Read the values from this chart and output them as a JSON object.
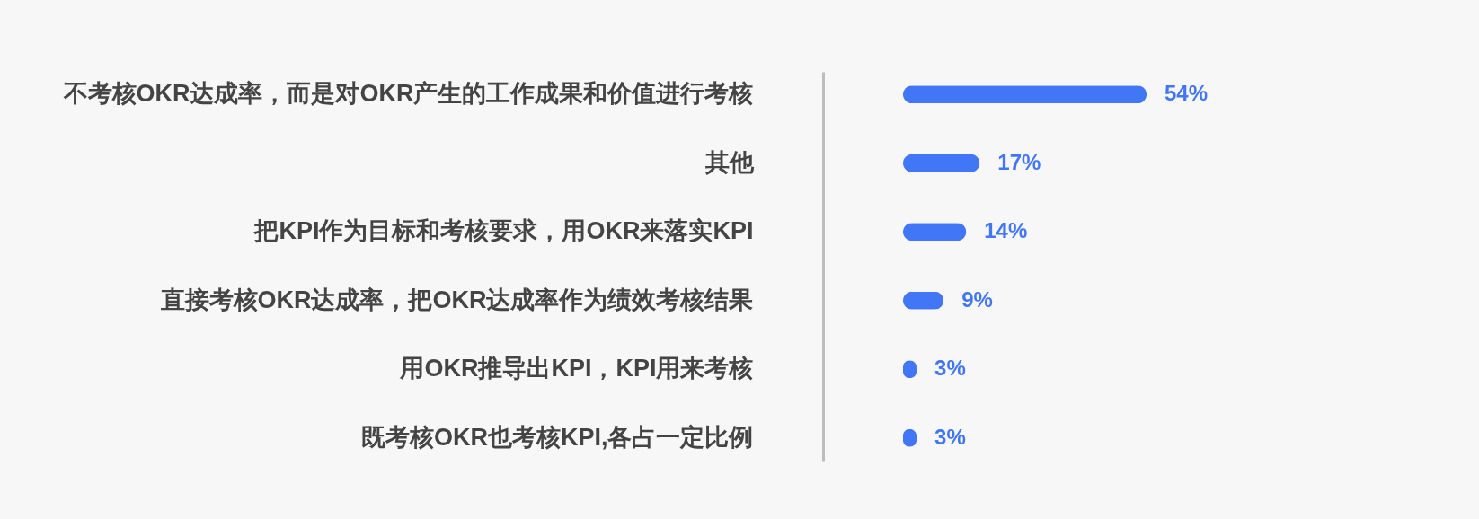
{
  "chart_data": {
    "type": "bar",
    "orientation": "horizontal",
    "categories": [
      "不考核OKR达成率，而是对OKR产生的工作成果和价值进行考核",
      "其他",
      "把KPI作为目标和考核要求，用OKR来落实KPI",
      "直接考核OKR达成率，把OKR达成率作为绩效考核结果",
      "用OKR推导出KPI，KPI用来考核",
      "既考核OKR也考核KPI,各占一定比例"
    ],
    "values": [
      54,
      17,
      14,
      9,
      3,
      3
    ],
    "value_labels": [
      "54%",
      "17%",
      "14%",
      "9%",
      "3%",
      "3%"
    ],
    "color": "#4176f6"
  }
}
